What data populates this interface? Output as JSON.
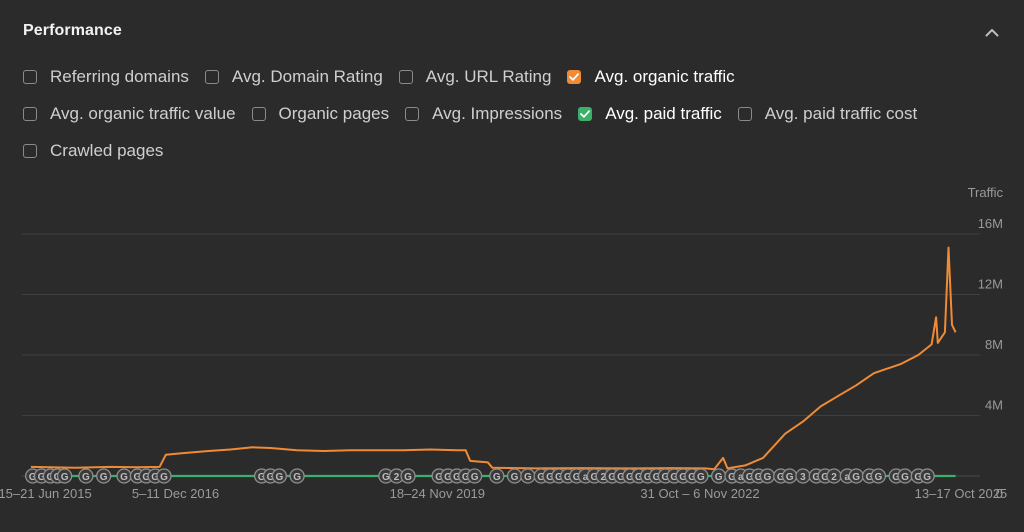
{
  "panel": {
    "title": "Performance"
  },
  "checkbox_rows": [
    [
      {
        "label": "Referring domains",
        "checked": false,
        "color": ""
      },
      {
        "label": "Avg. Domain Rating",
        "checked": false,
        "color": ""
      },
      {
        "label": "Avg. URL Rating",
        "checked": false,
        "color": ""
      },
      {
        "label": "Avg. organic traffic",
        "checked": true,
        "color": "#f08a35"
      }
    ],
    [
      {
        "label": "Avg. organic traffic value",
        "checked": false,
        "color": ""
      },
      {
        "label": "Organic pages",
        "checked": false,
        "color": ""
      },
      {
        "label": "Avg. Impressions",
        "checked": false,
        "color": ""
      },
      {
        "label": "Avg. paid traffic",
        "checked": true,
        "color": "#3bb068"
      },
      {
        "label": "Avg. paid traffic cost",
        "checked": false,
        "color": ""
      }
    ],
    [
      {
        "label": "Crawled pages",
        "checked": false,
        "color": ""
      }
    ]
  ],
  "chart_data": {
    "type": "line",
    "ylabel": "Traffic",
    "ylim": [
      0,
      16000000
    ],
    "y_ticks": [
      "0",
      "4M",
      "8M",
      "12M",
      "16M"
    ],
    "y_tick_values": [
      0,
      4000000,
      8000000,
      12000000,
      16000000
    ],
    "x_tick_labels": [
      "15–21 Jun 2015",
      "5–11 Dec 2016",
      "18–24 Nov 2019",
      "31 Oct – 6 Nov 2022",
      "13–17 Oct 2025"
    ],
    "x_tick_years": [
      2015.46,
      2016.93,
      2019.88,
      2022.84,
      2025.78
    ],
    "xlim": [
      2015.2,
      2025.95
    ],
    "grid": true,
    "series": [
      {
        "name": "Avg. organic traffic",
        "color": "#f08a35",
        "points": [
          [
            2015.3,
            600000
          ],
          [
            2015.8,
            550000
          ],
          [
            2016.2,
            600000
          ],
          [
            2016.5,
            580000
          ],
          [
            2016.75,
            600000
          ],
          [
            2016.82,
            1400000
          ],
          [
            2017.0,
            1500000
          ],
          [
            2017.3,
            1650000
          ],
          [
            2017.55,
            1750000
          ],
          [
            2017.8,
            1900000
          ],
          [
            2018.0,
            1850000
          ],
          [
            2018.3,
            1700000
          ],
          [
            2018.6,
            1650000
          ],
          [
            2018.9,
            1700000
          ],
          [
            2019.2,
            1700000
          ],
          [
            2019.5,
            1700000
          ],
          [
            2019.8,
            1750000
          ],
          [
            2020.1,
            1700000
          ],
          [
            2020.2,
            1700000
          ],
          [
            2020.25,
            1000000
          ],
          [
            2020.45,
            900000
          ],
          [
            2020.5,
            550000
          ],
          [
            2021.0,
            500000
          ],
          [
            2021.5,
            520000
          ],
          [
            2022.0,
            500000
          ],
          [
            2022.5,
            520000
          ],
          [
            2022.9,
            500000
          ],
          [
            2023.0,
            450000
          ],
          [
            2023.1,
            1200000
          ],
          [
            2023.15,
            500000
          ],
          [
            2023.35,
            700000
          ],
          [
            2023.55,
            1200000
          ],
          [
            2023.8,
            2800000
          ],
          [
            2024.0,
            3600000
          ],
          [
            2024.2,
            4600000
          ],
          [
            2024.4,
            5300000
          ],
          [
            2024.6,
            6000000
          ],
          [
            2024.8,
            6800000
          ],
          [
            2024.95,
            7100000
          ],
          [
            2025.1,
            7400000
          ],
          [
            2025.3,
            8000000
          ],
          [
            2025.45,
            8700000
          ],
          [
            2025.5,
            10500000
          ],
          [
            2025.52,
            8800000
          ],
          [
            2025.6,
            9500000
          ],
          [
            2025.64,
            15100000
          ],
          [
            2025.68,
            10000000
          ],
          [
            2025.72,
            9500000
          ]
        ]
      },
      {
        "name": "Avg. paid traffic",
        "color": "#3bb068",
        "points": [
          [
            2015.3,
            0
          ],
          [
            2025.72,
            0
          ]
        ]
      }
    ],
    "annotation_markers": {
      "years": [
        2015.32,
        2015.42,
        2015.52,
        2015.6,
        2015.68,
        2015.92,
        2016.12,
        2016.35,
        2016.5,
        2016.6,
        2016.7,
        2016.8,
        2017.9,
        2018.0,
        2018.1,
        2018.3,
        2019.3,
        2019.42,
        2019.55,
        2019.9,
        2020.0,
        2020.1,
        2020.2,
        2020.3,
        2020.55,
        2020.75,
        2020.9,
        2021.05,
        2021.15,
        2021.25,
        2021.35,
        2021.45,
        2021.55,
        2021.65,
        2021.75,
        2021.85,
        2021.95,
        2022.05,
        2022.15,
        2022.25,
        2022.35,
        2022.45,
        2022.55,
        2022.65,
        2022.75,
        2022.85,
        2023.05,
        2023.2,
        2023.3,
        2023.4,
        2023.5,
        2023.6,
        2023.75,
        2023.85,
        2024.0,
        2024.15,
        2024.25,
        2024.35,
        2024.5,
        2024.6,
        2024.75,
        2024.85,
        2025.05,
        2025.15,
        2025.3,
        2025.4
      ],
      "labels": [
        "G",
        "G",
        "G",
        "G",
        "G",
        "G",
        "G",
        "G",
        "G",
        "G",
        "G",
        "G",
        "G",
        "G",
        "G",
        "G",
        "G",
        "2",
        "G",
        "G",
        "G",
        "G",
        "G",
        "G",
        "G",
        "G",
        "G",
        "G",
        "G",
        "G",
        "G",
        "G",
        "a",
        "G",
        "2",
        "G",
        "G",
        "G",
        "G",
        "G",
        "G",
        "G",
        "G",
        "G",
        "G",
        "G",
        "G",
        "G",
        "a",
        "G",
        "G",
        "G",
        "G",
        "G",
        "3",
        "G",
        "G",
        "2",
        "a",
        "G",
        "G",
        "G",
        "G",
        "G",
        "G",
        "G"
      ]
    }
  }
}
